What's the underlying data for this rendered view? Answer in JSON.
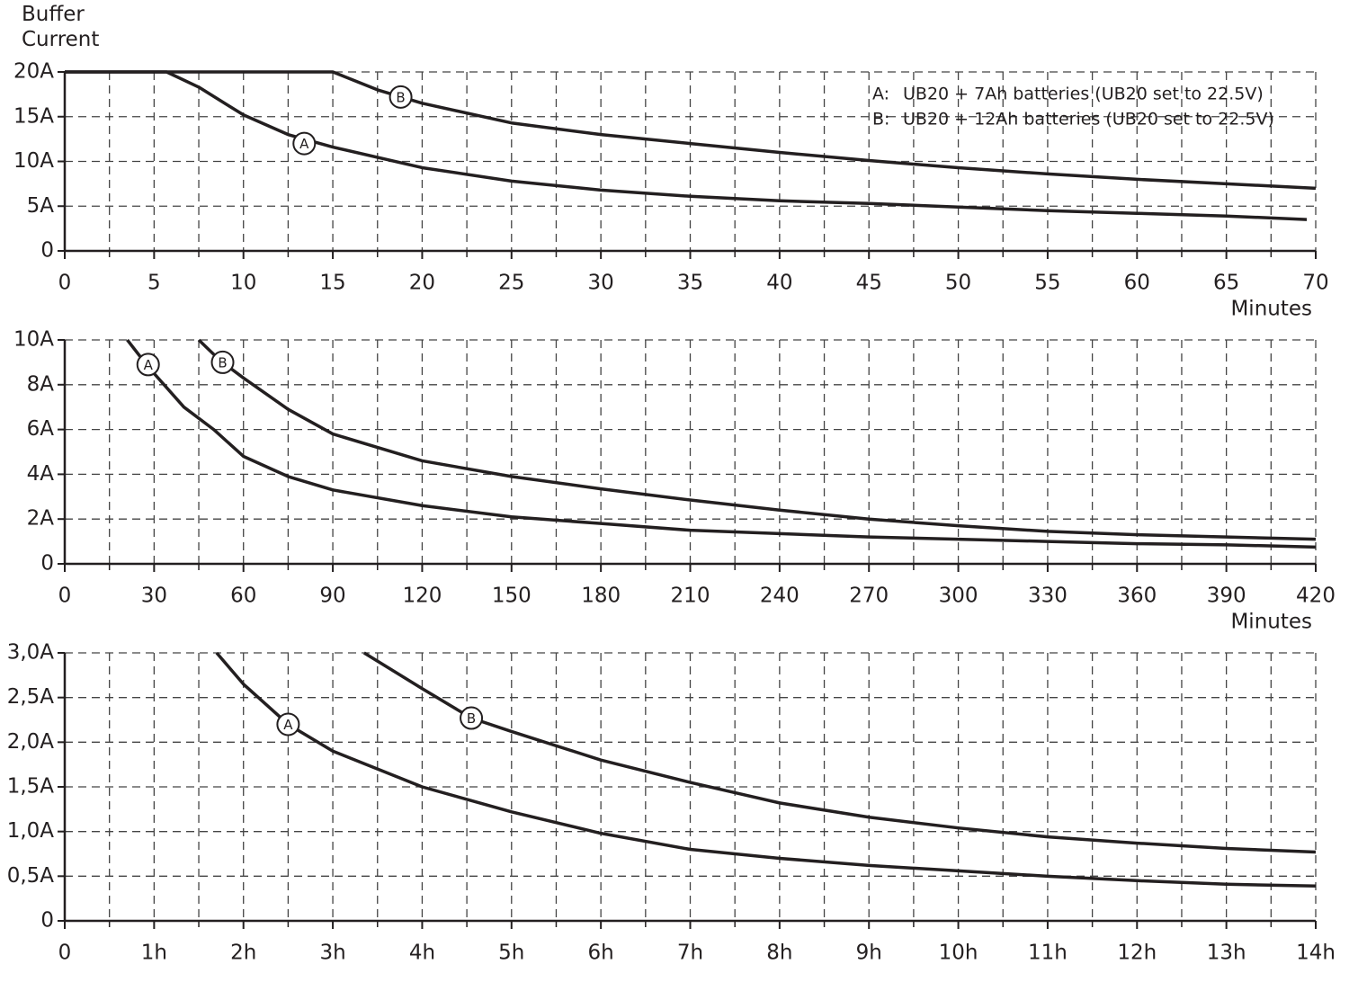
{
  "chart_data": [
    {
      "type": "line",
      "ylabel": "Buffer Current",
      "xlabel": "Minutes",
      "color": "#231f20",
      "grid": true,
      "xlim": [
        0,
        70
      ],
      "xticks": [
        0,
        5,
        10,
        15,
        20,
        25,
        30,
        35,
        40,
        45,
        50,
        55,
        60,
        65,
        70
      ],
      "ylim": [
        0,
        20
      ],
      "yticks": [
        0,
        {
          "value": 5,
          "label": "5A"
        },
        {
          "value": 10,
          "label": "10A"
        },
        {
          "value": 15,
          "label": "15A"
        },
        {
          "value": 20,
          "label": "20A"
        }
      ],
      "legend": [
        {
          "key": "A:",
          "text": "UB20 + 7Ah batteries (UB20 set to 22.5V)"
        },
        {
          "key": "B:",
          "text": "UB20 + 12Ah batteries (UB20 set to 22.5V)"
        }
      ],
      "series": [
        {
          "name": "A",
          "x": [
            0,
            5.7,
            7.5,
            10,
            12.5,
            15,
            20,
            25,
            30,
            35,
            40,
            45,
            50,
            55,
            60,
            65,
            69.5
          ],
          "values": [
            20,
            20,
            18.3,
            15.2,
            13,
            11.6,
            9.3,
            7.8,
            6.8,
            6.1,
            5.6,
            5.3,
            4.9,
            4.5,
            4.2,
            3.9,
            3.5
          ]
        },
        {
          "name": "B",
          "x": [
            0,
            15,
            17.5,
            20,
            25,
            30,
            35,
            40,
            45,
            50,
            55,
            60,
            65,
            70
          ],
          "values": [
            20,
            20,
            18,
            16.5,
            14.3,
            13,
            12,
            11,
            10.1,
            9.3,
            8.6,
            8.0,
            7.5,
            7.0
          ]
        }
      ],
      "annotations": [
        {
          "text": "A",
          "x": 13.4,
          "y": 12
        },
        {
          "text": "B",
          "x": 18.8,
          "y": 17.2
        }
      ]
    },
    {
      "type": "line",
      "xlabel": "Minutes",
      "color": "#231f20",
      "grid": true,
      "xlim": [
        0,
        420
      ],
      "xticks": [
        0,
        30,
        60,
        90,
        120,
        150,
        180,
        210,
        240,
        270,
        300,
        330,
        360,
        390,
        420
      ],
      "ylim": [
        0,
        10
      ],
      "yticks": [
        0,
        {
          "value": 2,
          "label": "2A"
        },
        {
          "value": 4,
          "label": "4A"
        },
        {
          "value": 6,
          "label": "6A"
        },
        {
          "value": 8,
          "label": "8A"
        },
        {
          "value": 10,
          "label": "10A"
        }
      ],
      "series": [
        {
          "name": "A",
          "x": [
            21,
            28,
            40,
            50,
            60,
            75,
            90,
            120,
            150,
            180,
            210,
            240,
            270,
            300,
            330,
            360,
            390,
            420
          ],
          "values": [
            10,
            8.8,
            7,
            6,
            4.8,
            3.9,
            3.3,
            2.6,
            2.1,
            1.8,
            1.5,
            1.35,
            1.2,
            1.1,
            1.0,
            0.9,
            0.85,
            0.75
          ]
        },
        {
          "name": "B",
          "x": [
            45,
            52,
            60,
            75,
            90,
            120,
            150,
            180,
            210,
            240,
            270,
            300,
            330,
            360,
            390,
            420
          ],
          "values": [
            10,
            9.1,
            8.3,
            6.9,
            5.8,
            4.6,
            3.9,
            3.35,
            2.85,
            2.4,
            2.0,
            1.7,
            1.45,
            1.3,
            1.2,
            1.1
          ]
        }
      ],
      "annotations": [
        {
          "text": "A",
          "x": 28,
          "y": 8.9
        },
        {
          "text": "B",
          "x": 53,
          "y": 9.0
        }
      ]
    },
    {
      "type": "line",
      "color": "#231f20",
      "grid": true,
      "xlim": [
        0,
        14
      ],
      "xticks": [
        0,
        {
          "value": 1,
          "label": "1h"
        },
        {
          "value": 2,
          "label": "2h"
        },
        {
          "value": 3,
          "label": "3h"
        },
        {
          "value": 4,
          "label": "4h"
        },
        {
          "value": 5,
          "label": "5h"
        },
        {
          "value": 6,
          "label": "6h"
        },
        {
          "value": 7,
          "label": "7h"
        },
        {
          "value": 8,
          "label": "8h"
        },
        {
          "value": 9,
          "label": "9h"
        },
        {
          "value": 10,
          "label": "10h"
        },
        {
          "value": 11,
          "label": "11h"
        },
        {
          "value": 12,
          "label": "12h"
        },
        {
          "value": 13,
          "label": "13h"
        },
        {
          "value": 14,
          "label": "14h"
        }
      ],
      "ylim": [
        0,
        3
      ],
      "yticks": [
        0,
        {
          "value": 0.5,
          "label": "0,5A"
        },
        {
          "value": 1,
          "label": "1,0A"
        },
        {
          "value": 1.5,
          "label": "1,5A"
        },
        {
          "value": 2,
          "label": "2,0A"
        },
        {
          "value": 2.5,
          "label": "2,5A"
        },
        {
          "value": 3,
          "label": "3,0A"
        }
      ],
      "series": [
        {
          "name": "A",
          "x": [
            1.7,
            2,
            2.5,
            3,
            4,
            5,
            6,
            7,
            8,
            9,
            10,
            11,
            12,
            13,
            14
          ],
          "values": [
            3.0,
            2.65,
            2.2,
            1.9,
            1.5,
            1.22,
            0.98,
            0.8,
            0.7,
            0.62,
            0.56,
            0.5,
            0.45,
            0.41,
            0.39
          ]
        },
        {
          "name": "B",
          "x": [
            3.35,
            4,
            4.55,
            5,
            6,
            7,
            8,
            9,
            10,
            11,
            12,
            13,
            14
          ],
          "values": [
            3.0,
            2.6,
            2.27,
            2.12,
            1.8,
            1.55,
            1.32,
            1.16,
            1.04,
            0.94,
            0.87,
            0.81,
            0.77
          ]
        }
      ],
      "annotations": [
        {
          "text": "A",
          "x": 2.5,
          "y": 2.2
        },
        {
          "text": "B",
          "x": 4.55,
          "y": 2.27
        }
      ]
    }
  ]
}
